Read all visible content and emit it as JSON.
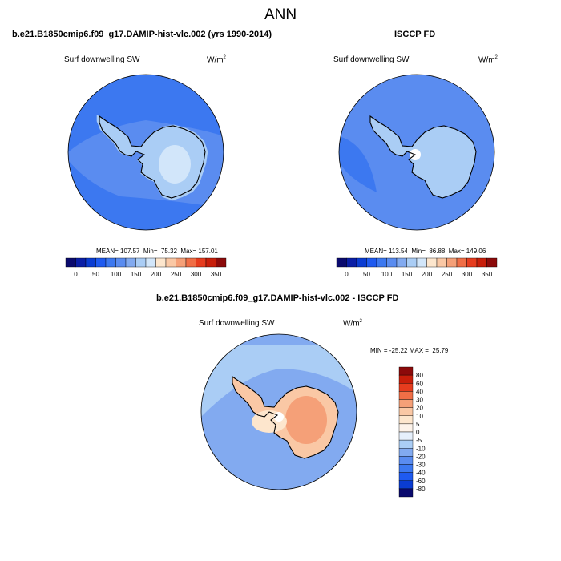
{
  "figure": {
    "title": "ANN"
  },
  "chart_data": [
    {
      "type": "map",
      "projection": "south-polar-stereographic",
      "title": "b.e21.B1850cmip6.f09_g17.DAMIP-hist-vlc.002 (yrs 1990-2014)",
      "variable": "Surf downwelling SW",
      "units_base": "W/m",
      "units_exp": "2",
      "stats_label": "MEAN= 107.57  Min=  75.32  Max= 157.01",
      "mean": 107.57,
      "min": 75.32,
      "max": 157.01,
      "colorbar": {
        "orientation": "horizontal",
        "levels": [
          0,
          25,
          50,
          75,
          100,
          125,
          150,
          175,
          200,
          225,
          250,
          275,
          300,
          325,
          350
        ],
        "tick_labels": [
          "0",
          "50",
          "100",
          "150",
          "200",
          "250",
          "300",
          "350"
        ],
        "colors": [
          "#0a0a6e",
          "#0a1ea6",
          "#0a3cd2",
          "#1e5af0",
          "#3c78f0",
          "#5a8cf0",
          "#82aaf0",
          "#aacdf5",
          "#d2e6fa",
          "#fde6cd",
          "#fac8a5",
          "#f5a078",
          "#f06e46",
          "#e63c1e",
          "#c81e0a",
          "#8c0a0a"
        ]
      }
    },
    {
      "type": "map",
      "projection": "south-polar-stereographic",
      "title": "ISCCP FD",
      "variable": "Surf downwelling SW",
      "units_base": "W/m",
      "units_exp": "2",
      "stats_label": "MEAN= 113.54  Min=  86.88  Max= 149.06",
      "mean": 113.54,
      "min": 86.88,
      "max": 149.06,
      "colorbar": {
        "orientation": "horizontal",
        "levels": [
          0,
          25,
          50,
          75,
          100,
          125,
          150,
          175,
          200,
          225,
          250,
          275,
          300,
          325,
          350
        ],
        "tick_labels": [
          "0",
          "50",
          "100",
          "150",
          "200",
          "250",
          "300",
          "350"
        ],
        "colors": [
          "#0a0a6e",
          "#0a1ea6",
          "#0a3cd2",
          "#1e5af0",
          "#3c78f0",
          "#5a8cf0",
          "#82aaf0",
          "#aacdf5",
          "#d2e6fa",
          "#fde6cd",
          "#fac8a5",
          "#f5a078",
          "#f06e46",
          "#e63c1e",
          "#c81e0a",
          "#8c0a0a"
        ]
      }
    },
    {
      "type": "map",
      "projection": "south-polar-stereographic",
      "title": "b.e21.B1850cmip6.f09_g17.DAMIP-hist-vlc.002 - ISCCP FD",
      "variable": "Surf downwelling SW",
      "units_base": "W/m",
      "units_exp": "2",
      "stats_label": "MIN = -25.22 MAX =  25.79",
      "min": -25.22,
      "max": 25.79,
      "colorbar": {
        "orientation": "vertical",
        "levels": [
          -80,
          -60,
          -40,
          -30,
          -20,
          -10,
          -5,
          0,
          5,
          10,
          20,
          30,
          40,
          60,
          80
        ],
        "tick_labels": [
          "80",
          "60",
          "40",
          "30",
          "20",
          "10",
          "5",
          "0",
          "-5",
          "-10",
          "-20",
          "-30",
          "-40",
          "-60",
          "-80"
        ],
        "colors_top_to_bottom": [
          "#8c0a0a",
          "#c81e0a",
          "#e63c1e",
          "#f06e46",
          "#f5a078",
          "#fac8a5",
          "#fde6cd",
          "#fdf3ea",
          "#e6f0fc",
          "#aacdf5",
          "#82aaf0",
          "#5a8cf0",
          "#3c78f0",
          "#1e5af0",
          "#0a3cd2",
          "#0a0a6e"
        ]
      }
    }
  ]
}
